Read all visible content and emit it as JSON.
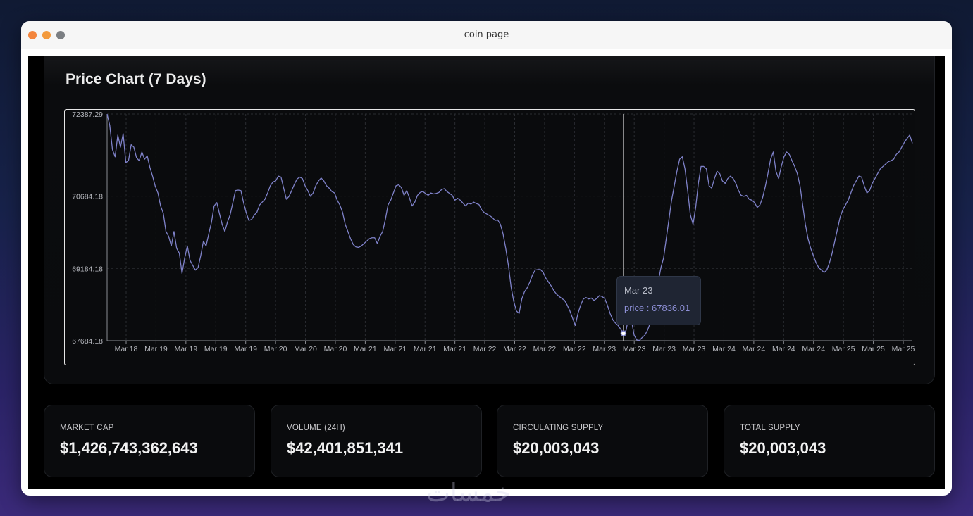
{
  "window": {
    "title": "coin page"
  },
  "chart_section": {
    "title": "Price Chart (7 Days)",
    "tooltip": {
      "date": "Mar 23",
      "price_text": "price : 67836.01"
    }
  },
  "colors": {
    "line": "#7f82c9",
    "grid": "#2a2c31",
    "axis_text": "#b5b7bd",
    "cursor": "#d8d8d8"
  },
  "chart_data": {
    "type": "line",
    "series": [
      {
        "name": "price",
        "values": [
          72387.29,
          72150,
          71650,
          71500,
          71950,
          71700,
          71980,
          71380,
          71420,
          71750,
          71700,
          71480,
          71420,
          71600,
          71450,
          71520,
          71280,
          71100,
          70890,
          70750,
          70480,
          70330,
          69950,
          69850,
          69650,
          69950,
          69600,
          69500,
          69080,
          69400,
          69650,
          69350,
          69250,
          69150,
          69200,
          69450,
          69750,
          69650,
          69900,
          70140,
          70480,
          70550,
          70320,
          70100,
          69950,
          70150,
          70300,
          70550,
          70800,
          70810,
          70800,
          70550,
          70340,
          70180,
          70200,
          70290,
          70350,
          70500,
          70560,
          70620,
          70750,
          70900,
          70980,
          71000,
          71100,
          71080,
          70850,
          70620,
          70680,
          70800,
          70930,
          71040,
          71080,
          71050,
          70900,
          70800,
          70680,
          70750,
          70900,
          71000,
          71060,
          71000,
          70900,
          70850,
          70780,
          70750,
          70600,
          70500,
          70350,
          70100,
          69950,
          69800,
          69680,
          69630,
          69620,
          69650,
          69700,
          69750,
          69800,
          69820,
          69820,
          69700,
          69850,
          69950,
          70200,
          70500,
          70600,
          70750,
          70900,
          70920,
          70860,
          70700,
          70800,
          70650,
          70480,
          70560,
          70700,
          70760,
          70780,
          70740,
          70700,
          70750,
          70730,
          70740,
          70760,
          70820,
          70840,
          70780,
          70740,
          70700,
          70600,
          70640,
          70600,
          70540,
          70480,
          70540,
          70520,
          70560,
          70530,
          70510,
          70400,
          70340,
          70310,
          70280,
          70240,
          70180,
          70190,
          70100,
          69900,
          69600,
          69250,
          68800,
          68500,
          68300,
          68250,
          68550,
          68700,
          68780,
          68900,
          69050,
          69150,
          69160,
          69160,
          69100,
          68980,
          68900,
          68820,
          68720,
          68650,
          68600,
          68560,
          68520,
          68420,
          68300,
          68150,
          68000,
          68250,
          68420,
          68550,
          68580,
          68550,
          68570,
          68520,
          68560,
          68620,
          68600,
          68560,
          68420,
          68250,
          68120,
          68050,
          68000,
          67920,
          67836.01,
          67900,
          68200,
          68100,
          67800,
          67700,
          67690,
          67750,
          67800,
          67900,
          68050,
          68300,
          68600,
          68900,
          69200,
          69400,
          69800,
          70200,
          70600,
          70900,
          71200,
          71450,
          71500,
          71250,
          70800,
          70300,
          70100,
          70450,
          70950,
          71300,
          71300,
          71250,
          70900,
          70850,
          71050,
          71200,
          71150,
          71000,
          70950,
          71050,
          71100,
          71050,
          70950,
          70800,
          70700,
          70680,
          70700,
          70620,
          70600,
          70550,
          70450,
          70500,
          70650,
          70880,
          71150,
          71450,
          71600,
          71200,
          71050,
          71300,
          71500,
          71600,
          71550,
          71420,
          71300,
          71150,
          70900,
          70500,
          70100,
          69800,
          69600,
          69450,
          69300,
          69200,
          69150,
          69100,
          69150,
          69300,
          69500,
          69750,
          70000,
          70250,
          70400,
          70500,
          70600,
          70750,
          70900,
          71000,
          71100,
          71080,
          70900,
          70750,
          70800,
          70950,
          71050,
          71150,
          71250,
          71300,
          71350,
          71400,
          71420,
          71450,
          71550,
          71600,
          71700,
          71800,
          71880,
          71950,
          71780
        ]
      }
    ],
    "y_ticks": [
      "72387.29",
      "70684.18",
      "69184.18",
      "67684.18"
    ],
    "y_tick_values": [
      72387.29,
      70684.18,
      69184.18,
      67684.18
    ],
    "ylim": [
      67684.18,
      72387.29
    ],
    "x_ticks": [
      "Mar 18",
      "Mar 19",
      "Mar 19",
      "Mar 19",
      "Mar 19",
      "Mar 20",
      "Mar 20",
      "Mar 20",
      "Mar 21",
      "Mar 21",
      "Mar 21",
      "Mar 21",
      "Mar 22",
      "Mar 22",
      "Mar 22",
      "Mar 22",
      "Mar 23",
      "Mar 23",
      "Mar 23",
      "Mar 23",
      "Mar 24",
      "Mar 24",
      "Mar 24",
      "Mar 24",
      "Mar 25",
      "Mar 25",
      "Mar 25"
    ],
    "highlight": {
      "label": "Mar 23",
      "value": 67836.01
    },
    "grid": true,
    "legend": "none"
  },
  "stats": [
    {
      "label": "MARKET CAP",
      "value": "$1,426,743,362,643"
    },
    {
      "label": "VOLUME (24H)",
      "value": "$42,401,851,341"
    },
    {
      "label": "CIRCULATING SUPPLY",
      "value": "$20,003,043"
    },
    {
      "label": "TOTAL SUPPLY",
      "value": "$20,003,043"
    }
  ],
  "watermark": {
    "text": "خمسات"
  }
}
